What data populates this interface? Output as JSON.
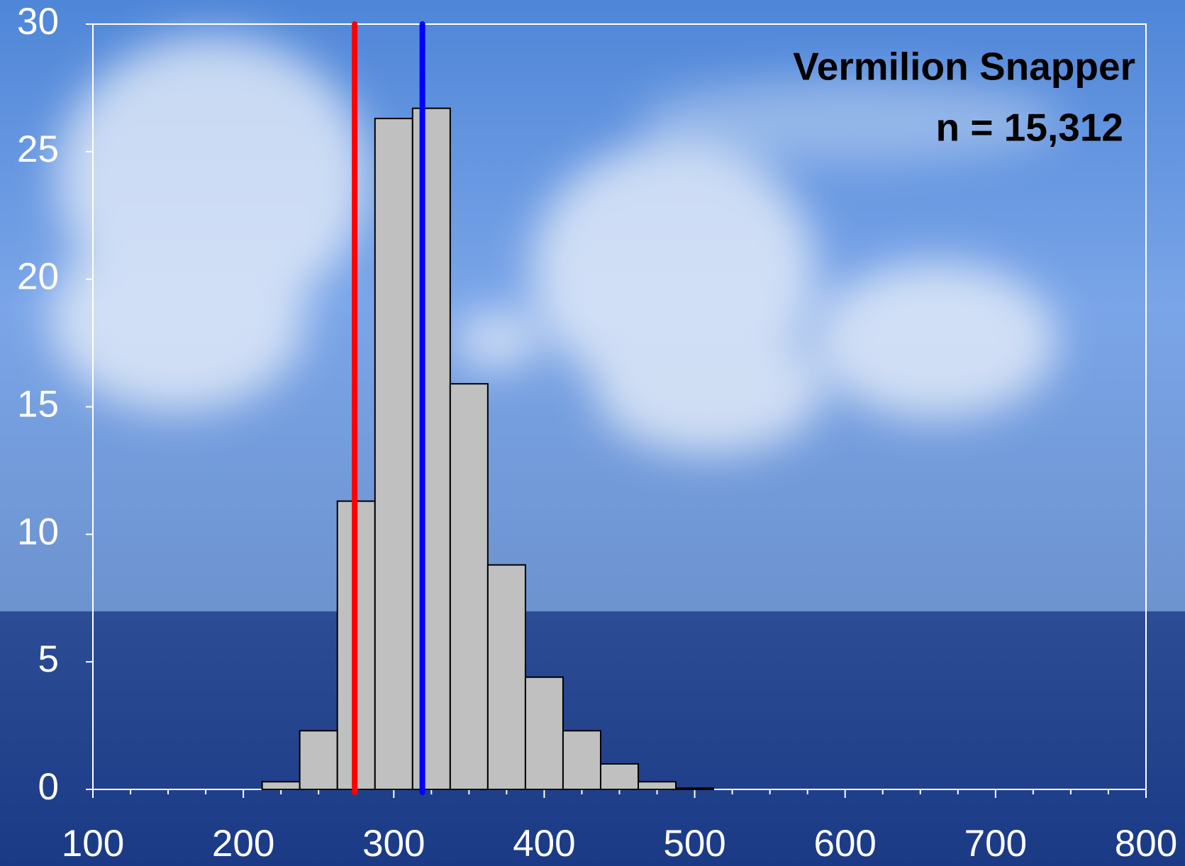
{
  "chart_data": {
    "type": "histogram",
    "annotations": [
      "Vermilion Snapper",
      "n = 15,312"
    ],
    "bins": [
      212.5,
      237.5,
      262.5,
      287.5,
      312.5,
      337.5,
      362.5,
      387.5,
      412.5,
      437.5,
      462.5,
      487.5,
      512.5
    ],
    "values": [
      0.3,
      2.3,
      11.3,
      26.3,
      26.7,
      15.9,
      8.8,
      4.4,
      2.3,
      1.0,
      0.3,
      0.05
    ],
    "color": "#c0c0c0",
    "vlines": [
      {
        "value": 274,
        "color": "#ff0000"
      },
      {
        "value": 319,
        "color": "#0000ff"
      }
    ],
    "xlim": [
      100,
      800
    ],
    "xticks": [
      100,
      200,
      300,
      400,
      500,
      600,
      700,
      800
    ],
    "xminorticks": [
      125,
      150,
      175,
      225,
      250,
      275,
      325,
      350,
      375,
      425,
      450,
      475,
      525,
      550,
      575,
      625,
      650,
      675,
      725,
      750,
      775
    ],
    "ylim": [
      0,
      30
    ],
    "yticks": [
      0,
      5,
      10,
      15,
      20,
      25,
      30
    ]
  }
}
